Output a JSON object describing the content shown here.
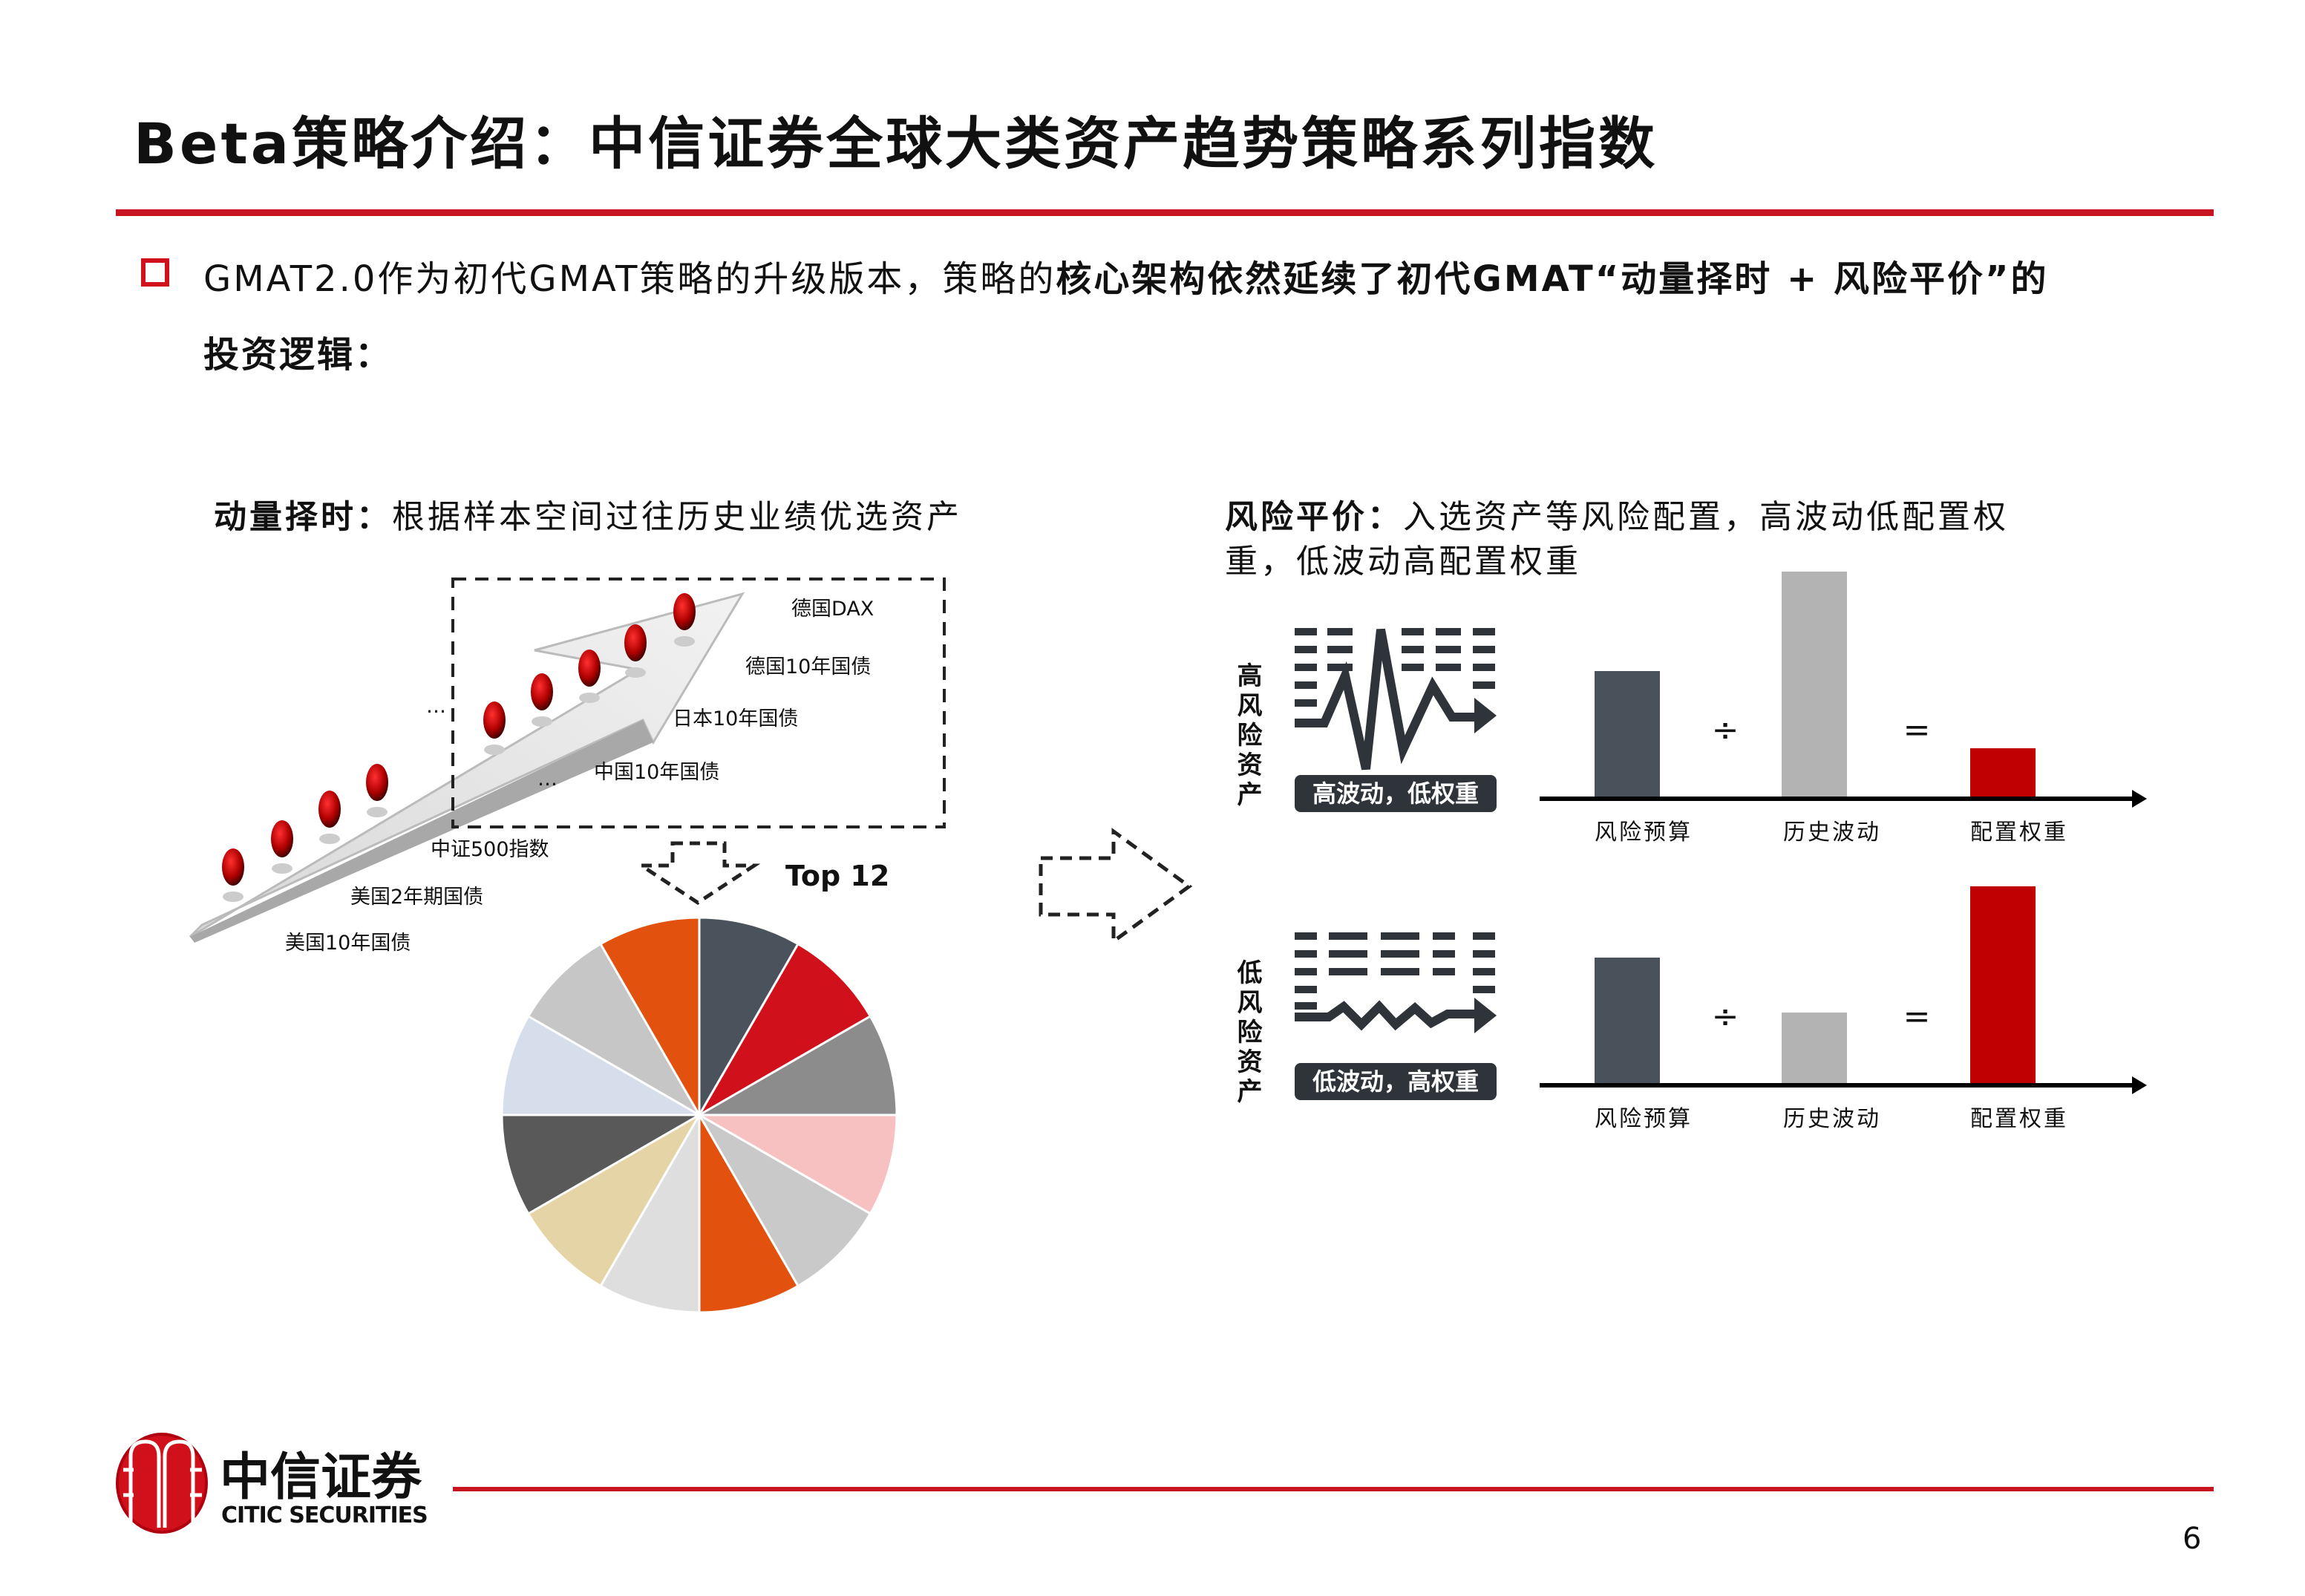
{
  "slide": {
    "title": "Beta策略介绍：中信证券全球大类资产趋势策略系列指数",
    "bullet": {
      "part1": "GMAT2.0作为初代GMAT策略的升级版本，策略的",
      "part2_bold": "核心架构依然延续了初代GMAT“动量择时 + 风险平价”的",
      "line2_bold": "投资逻辑："
    },
    "momentum": {
      "heading_bold": "动量择时：",
      "heading_text": "根据样本空间过往历史业绩优选资产",
      "assets": [
        "德国DAX",
        "德国10年国债",
        "日本10年国债",
        "中国10年国债",
        "中证500指数",
        "美国2年期国债",
        "美国10年国债"
      ],
      "ellipsis": "…",
      "top_label": "Top 12",
      "pie_colors": [
        "#4a525c",
        "#d0101a",
        "#8c8c8c",
        "#f7c1c1",
        "#c9c9c9",
        "#e2520e",
        "#dedede",
        "#e5d4a6",
        "#595959",
        "#d6deec",
        "#c6c6c6",
        "#e2520e"
      ]
    },
    "risk_parity": {
      "heading_bold": "风险平价：",
      "heading_line1": "入选资产等风险配置，高波动低配置权",
      "heading_line2": "重，低波动高配置权重",
      "high": {
        "side_label": "高风险资产",
        "tag": "高波动，低权重",
        "values": {
          "risk_budget": 86,
          "hist_vol": 153,
          "weight": 34
        }
      },
      "low": {
        "side_label": "低风险资产",
        "tag": "低波动，高权重",
        "values": {
          "risk_budget": 86,
          "hist_vol": 49,
          "weight": 134
        }
      },
      "x_labels": [
        "风险预算",
        "历史波动",
        "配置权重"
      ],
      "divide": "÷",
      "equals": "=",
      "colors": {
        "risk_budget": "#49515b",
        "hist_vol": "#b3b3b3",
        "weight": "#c00000"
      }
    },
    "footer": {
      "logo_cn": "中信证券",
      "logo_en": "CITIC SECURITIES",
      "page_number": "6"
    }
  }
}
